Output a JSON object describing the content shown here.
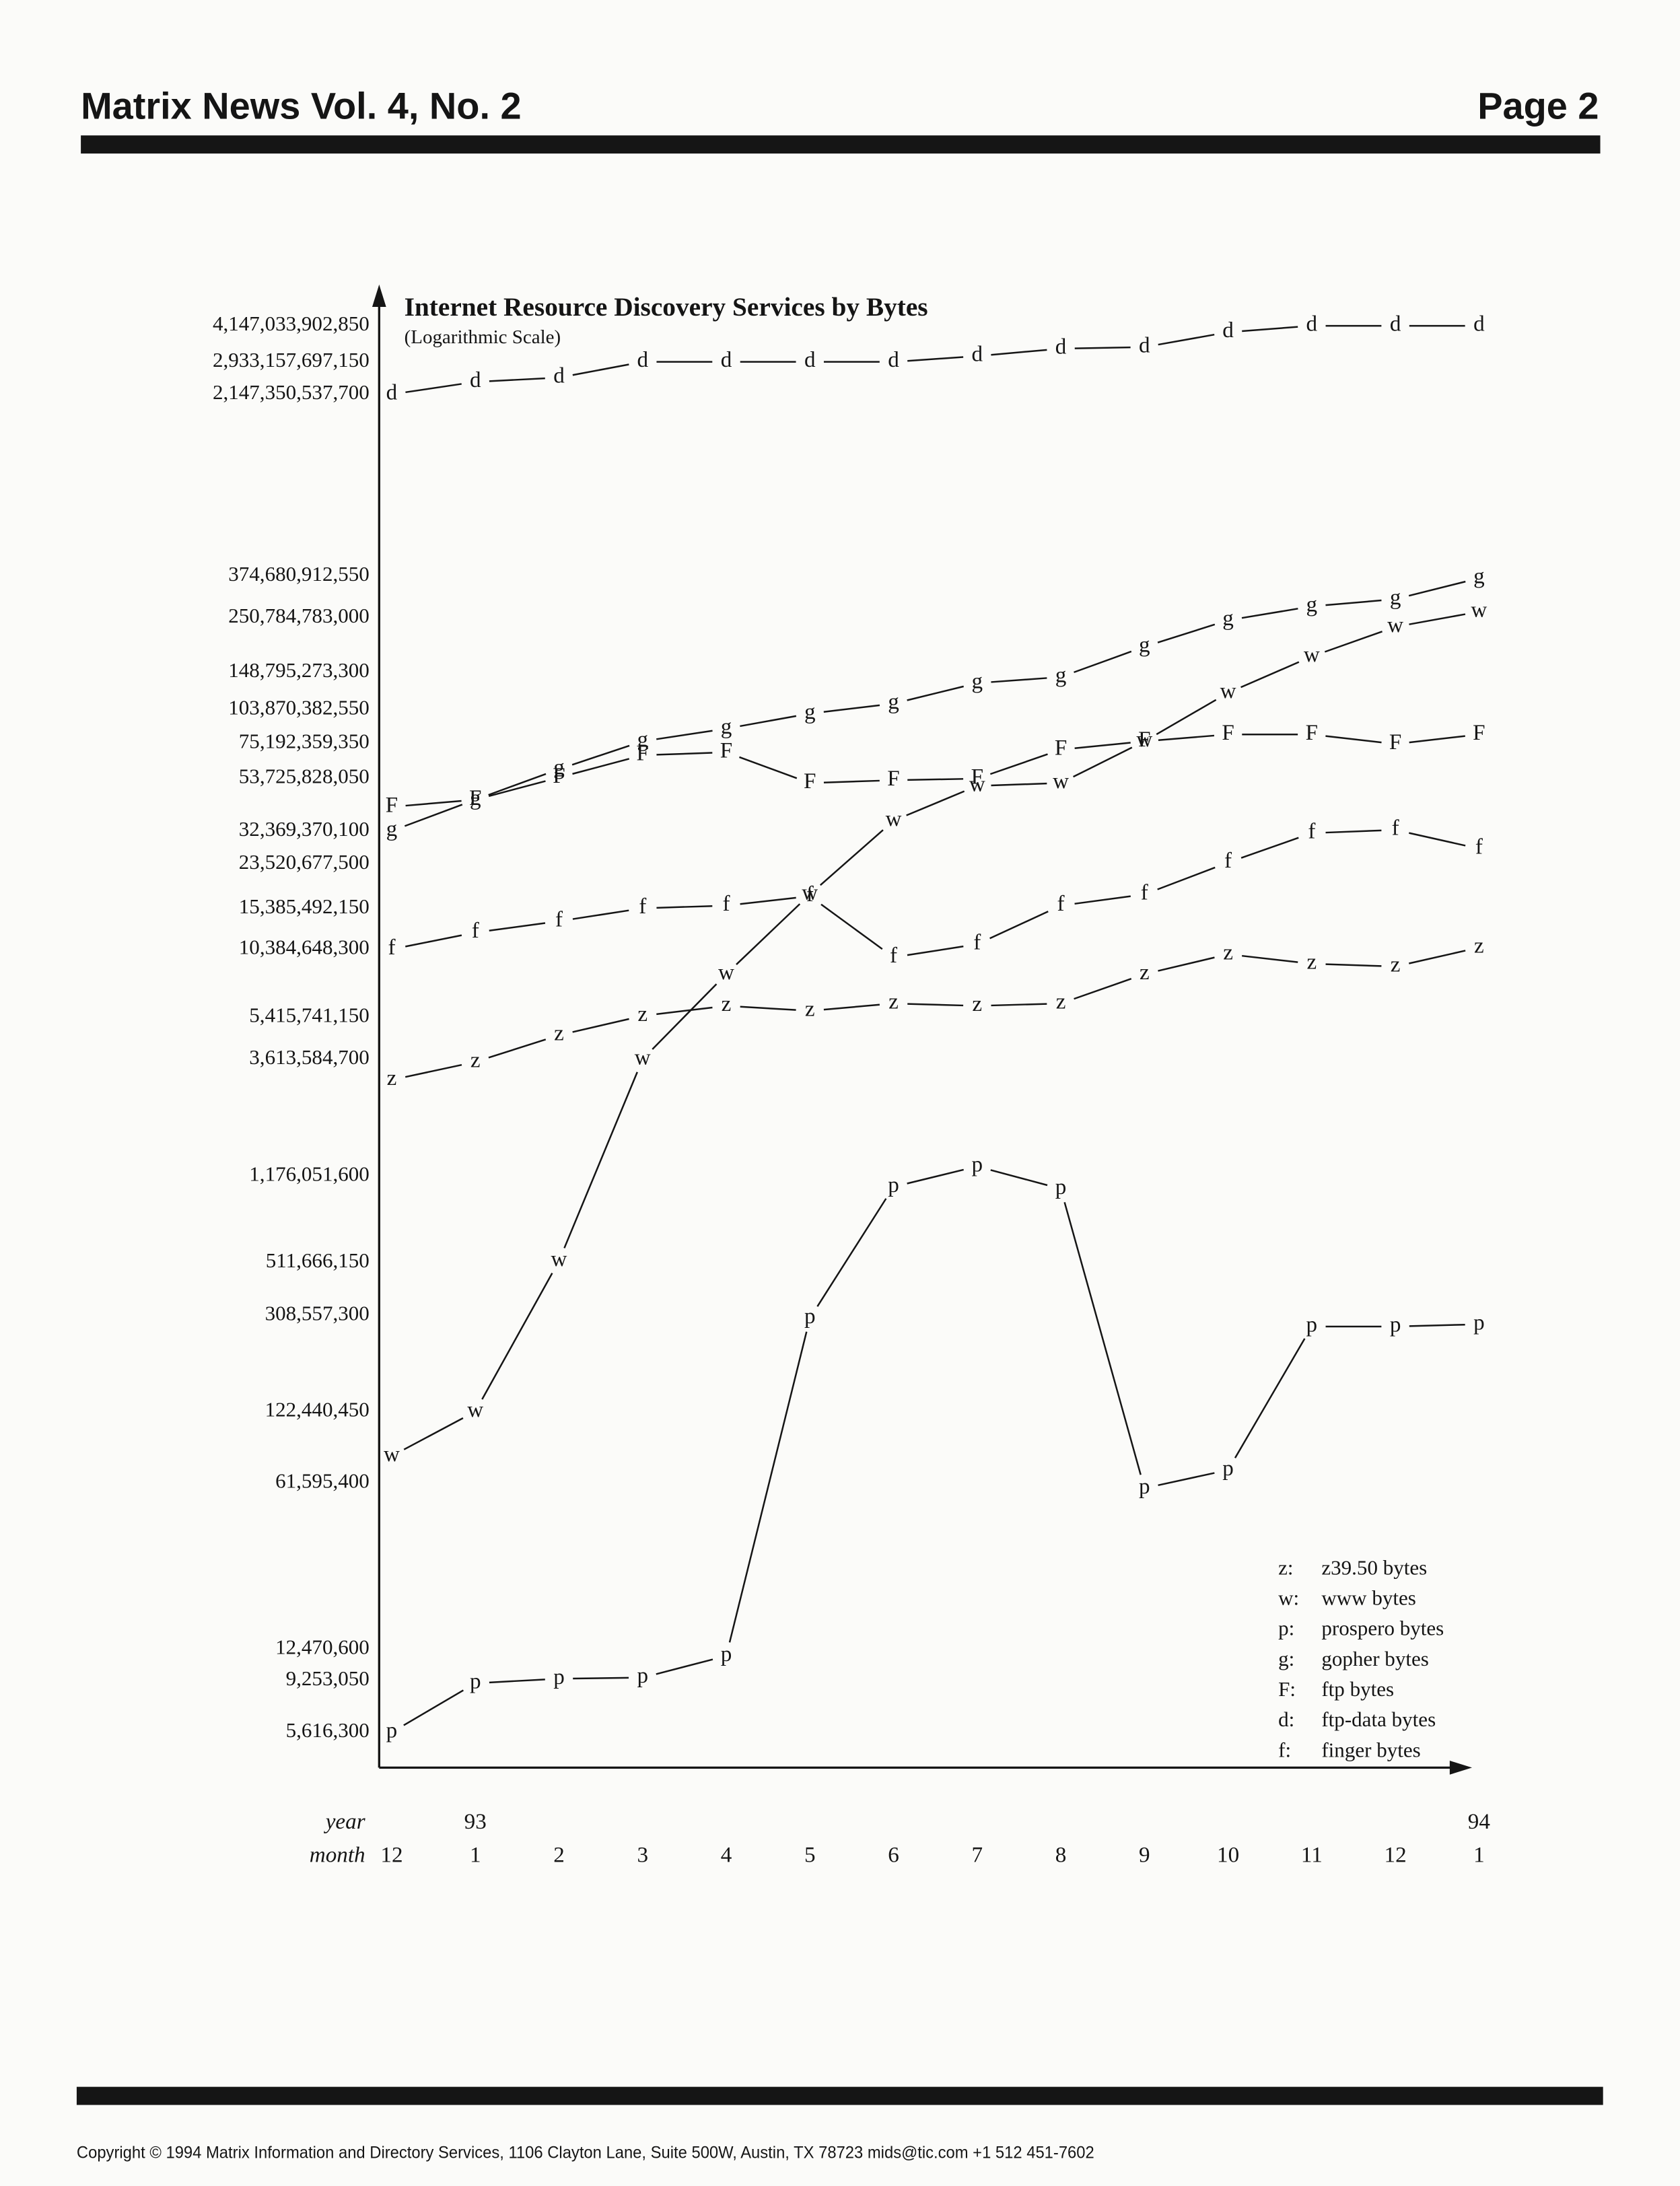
{
  "header": {
    "title": "Matrix News Vol. 4, No. 2",
    "page": "Page 2"
  },
  "chart_data": {
    "type": "line",
    "title": "Internet Resource Discovery Services by Bytes",
    "subtitle": "(Logarithmic Scale)",
    "log_scale": true,
    "grid": false,
    "legend": "lower-right",
    "x_row_labels": [
      "year",
      "month"
    ],
    "years": [
      null,
      "93",
      null,
      null,
      null,
      null,
      null,
      null,
      null,
      null,
      null,
      null,
      null,
      "94"
    ],
    "categories": [
      "12",
      "1",
      "2",
      "3",
      "4",
      "5",
      "6",
      "7",
      "8",
      "9",
      "10",
      "11",
      "12",
      "1"
    ],
    "ylim": [
      4000000,
      6000000000000
    ],
    "yticks": [
      {
        "value": 4147033902850,
        "label": "4,147,033,902,850"
      },
      {
        "value": 2933157697150,
        "label": "2,933,157,697,150"
      },
      {
        "value": 2147350537700,
        "label": "2,147,350,537,700"
      },
      {
        "value": 374680912550,
        "label": "374,680,912,550"
      },
      {
        "value": 250784783000,
        "label": "250,784,783,000"
      },
      {
        "value": 148795273300,
        "label": "148,795,273,300"
      },
      {
        "value": 103870382550,
        "label": "103,870,382,550"
      },
      {
        "value": 75192359350,
        "label": "75,192,359,350"
      },
      {
        "value": 53725828050,
        "label": "53,725,828,050"
      },
      {
        "value": 32369370100,
        "label": "32,369,370,100"
      },
      {
        "value": 23520677500,
        "label": "23,520,677,500"
      },
      {
        "value": 15385492150,
        "label": "15,385,492,150"
      },
      {
        "value": 10384648300,
        "label": "10,384,648,300"
      },
      {
        "value": 5415741150,
        "label": "5,415,741,150"
      },
      {
        "value": 3613584700,
        "label": "3,613,584,700"
      },
      {
        "value": 1176051600,
        "label": "1,176,051,600"
      },
      {
        "value": 511666150,
        "label": "511,666,150"
      },
      {
        "value": 308557300,
        "label": "308,557,300"
      },
      {
        "value": 122440450,
        "label": "122,440,450"
      },
      {
        "value": 61595400,
        "label": "61,595,400"
      },
      {
        "value": 12470600,
        "label": "12,470,600"
      },
      {
        "value": 9253050,
        "label": "9,253,050"
      },
      {
        "value": 5616300,
        "label": "5,616,300"
      }
    ],
    "series": [
      {
        "name": "z39.50 bytes",
        "key": "z:",
        "marker": "z",
        "color": "#111111",
        "values": [
          2960000000,
          3520000000,
          4550000000,
          5480000000,
          6030000000,
          5750000000,
          6170000000,
          6030000000,
          6170000000,
          8180000000,
          9900000000,
          9040000000,
          8800000000,
          10560000000
        ]
      },
      {
        "name": "www bytes",
        "key": "w:",
        "marker": "w",
        "color": "#111111",
        "values": [
          79800000,
          122440450,
          520000000,
          3613584700,
          8180000000,
          17600000000,
          35700000000,
          49900000000,
          51300000000,
          76600000000,
          122000000000,
          173000000000,
          230000000000,
          266000000000
        ]
      },
      {
        "name": "prospero bytes",
        "key": "p:",
        "marker": "p",
        "color": "#111111",
        "values": [
          5616300,
          9000000,
          9400000,
          9500000,
          11700000,
          300000000,
          1060000000,
          1290000000,
          1040000000,
          58600000,
          69800000,
          277000000,
          277000000,
          283000000
        ]
      },
      {
        "name": "gopher bytes",
        "key": "g:",
        "marker": "g",
        "color": "#111111",
        "values": [
          32369370100,
          43700000000,
          58600000000,
          76600000000,
          86500000000,
          100000000000,
          110000000000,
          134000000000,
          142000000000,
          190000000000,
          245000000000,
          280000000000,
          300000000000,
          367000000000
        ]
      },
      {
        "name": "ftp bytes",
        "key": "F:",
        "marker": "F",
        "color": "#111111",
        "values": [
          40800000000,
          43700000000,
          54100000000,
          67000000000,
          68900000000,
          51300000000,
          52700000000,
          53500000000,
          70700000000,
          76600000000,
          81800000000,
          81800000000,
          74600000000,
          81800000000
        ]
      },
      {
        "name": "ftp-data bytes",
        "key": "d:",
        "marker": "d",
        "color": "#111111",
        "values": [
          2147350537700,
          2420000000000,
          2520000000000,
          2933157697150,
          2933157697150,
          2933157697150,
          2933157697150,
          3100000000000,
          3330000000000,
          3380000000000,
          3900000000000,
          4147033902850,
          4147033902850,
          4147033902850
        ]
      },
      {
        "name": "finger bytes",
        "key": "f:",
        "marker": "f",
        "color": "#111111",
        "values": [
          10384648300,
          12200000000,
          13600000000,
          15400000000,
          15800000000,
          17300000000,
          9620000000,
          10900000000,
          15800000000,
          17600000000,
          23900000000,
          31700000000,
          32700000000,
          27300000000
        ]
      }
    ]
  },
  "footer": {
    "copyright": "Copyright  © 1994 Matrix Information and Directory Services, 1106 Clayton Lane, Suite 500W, Austin, TX 78723 mids@tic.com +1 512 451-7602"
  }
}
